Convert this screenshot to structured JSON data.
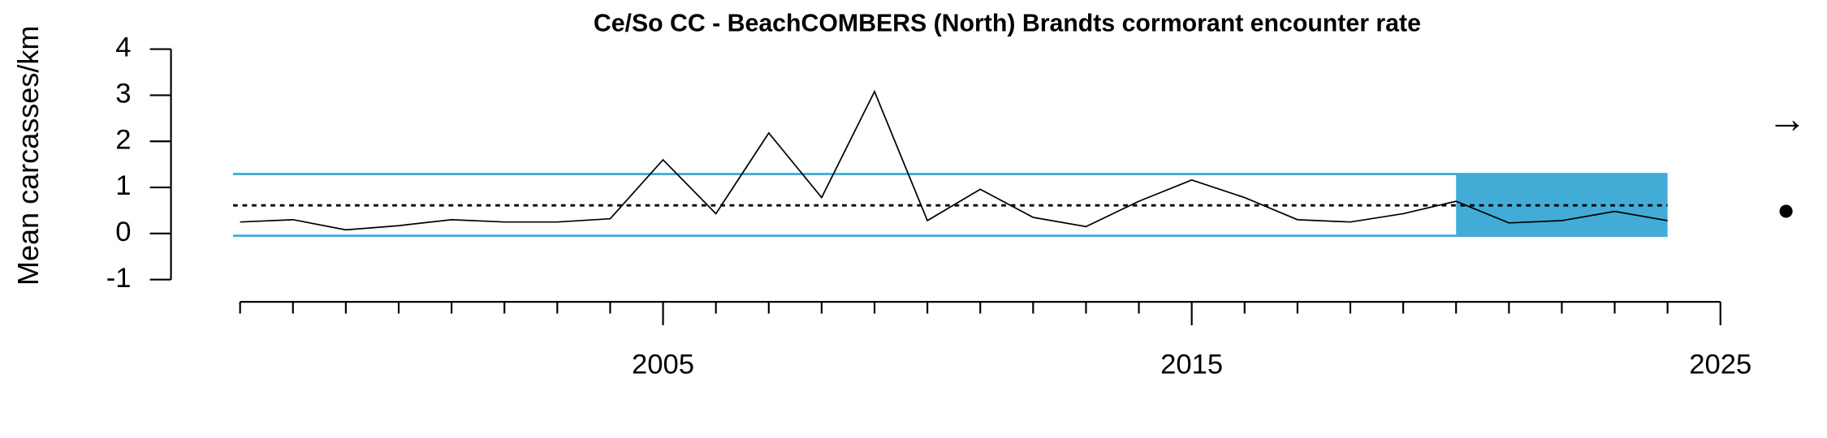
{
  "chart_data": {
    "type": "line",
    "title": "Ce/So CC - BeachCOMBERS (North) Brandts cormorant encounter rate",
    "y_label": "Mean carcasses/km",
    "x": [
      1997,
      1998,
      1999,
      2000,
      2001,
      2002,
      2003,
      2004,
      2005,
      2006,
      2007,
      2008,
      2009,
      2010,
      2011,
      2012,
      2013,
      2014,
      2015,
      2016,
      2017,
      2018,
      2019,
      2020,
      2021,
      2022,
      2023,
      2024
    ],
    "series": [
      {
        "name": "encounter rate",
        "color": "#000000",
        "values": [
          0.25,
          0.3,
          0.08,
          0.17,
          0.3,
          0.25,
          0.25,
          0.32,
          1.6,
          0.43,
          2.18,
          0.78,
          3.08,
          0.28,
          0.96,
          0.35,
          0.15,
          0.7,
          1.16,
          0.78,
          0.3,
          0.25,
          0.43,
          0.7,
          0.23,
          0.28,
          0.48,
          0.28
        ]
      }
    ],
    "mean": 0.61,
    "upper_bound": 1.29,
    "lower_bound": -0.05,
    "band_color": "#42acd6",
    "shaded_range": [
      2020,
      2024
    ],
    "xlim": [
      1997,
      2025
    ],
    "xticks": [
      2005,
      2015,
      2025
    ],
    "xminor_ticks": [
      1997,
      1998,
      1999,
      2000,
      2001,
      2002,
      2003,
      2004,
      2006,
      2007,
      2008,
      2009,
      2010,
      2011,
      2012,
      2013,
      2014,
      2016,
      2017,
      2018,
      2019,
      2020,
      2021,
      2022,
      2023,
      2024
    ],
    "ylim": [
      -1,
      4
    ],
    "yticks": [
      -1,
      0,
      1,
      2,
      3,
      4
    ],
    "trend_symbol": "→",
    "status_symbol": "●"
  }
}
